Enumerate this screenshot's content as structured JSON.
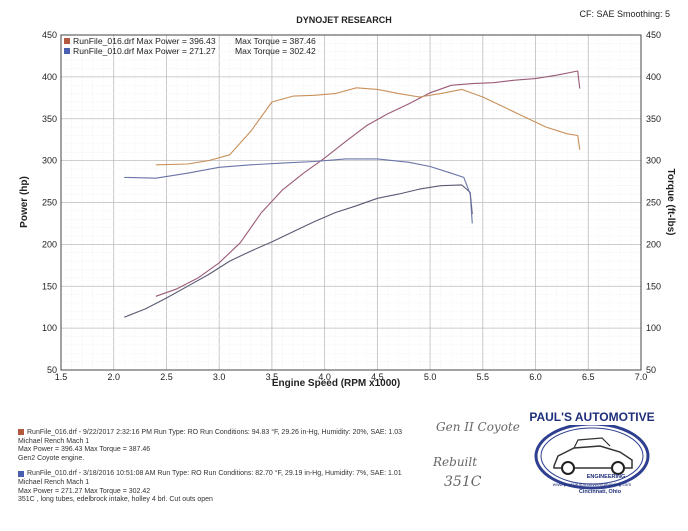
{
  "header": {
    "title": "DYNOJET RESEARCH",
    "settings": "CF: SAE  Smoothing: 5"
  },
  "legend": [
    {
      "file": "RunFile_016.drf",
      "max_power": "Max Power = 396.43",
      "max_torque": "Max Torque = 387.46",
      "color": "#b35a3e"
    },
    {
      "file": "RunFile_010.drf",
      "max_power": "Max Power = 271.27",
      "max_torque": "Max Torque = 302.42",
      "color": "#4a5fb0"
    }
  ],
  "chart_data": {
    "type": "line",
    "xlabel": "Engine Speed (RPM x1000)",
    "ylabel": "Power (hp)",
    "y2label": "Torque (ft-lbs)",
    "xlim": [
      1.5,
      7.0
    ],
    "ylim": [
      50,
      450
    ],
    "y2lim": [
      50,
      450
    ],
    "x_ticks": [
      "1.5",
      "2.0",
      "2.5",
      "3.0",
      "3.5",
      "4.0",
      "4.5",
      "5.0",
      "5.5",
      "6.0",
      "6.5",
      "7.0"
    ],
    "y_ticks": [
      "50",
      "100",
      "150",
      "200",
      "250",
      "300",
      "350",
      "400",
      "450"
    ],
    "y2_ticks": [
      "50",
      "100",
      "150",
      "200",
      "250",
      "300",
      "350",
      "400",
      "450"
    ],
    "grid": true,
    "series": [
      {
        "name": "RunFile_016 Power",
        "axis": "left",
        "color": "#9b5a78",
        "x": [
          2.4,
          2.6,
          2.8,
          3.0,
          3.2,
          3.4,
          3.6,
          3.8,
          4.0,
          4.2,
          4.4,
          4.6,
          4.8,
          5.0,
          5.2,
          5.4,
          5.6,
          5.8,
          6.0,
          6.2,
          6.4,
          6.42
        ],
        "y": [
          138,
          147,
          160,
          178,
          202,
          238,
          265,
          285,
          303,
          323,
          342,
          356,
          368,
          381,
          390,
          392,
          393,
          396,
          398,
          402,
          407,
          386
        ]
      },
      {
        "name": "RunFile_016 Torque",
        "axis": "right",
        "color": "#c9905a",
        "x": [
          2.4,
          2.7,
          2.9,
          3.1,
          3.3,
          3.5,
          3.7,
          3.9,
          4.1,
          4.3,
          4.5,
          4.7,
          4.9,
          5.1,
          5.3,
          5.5,
          5.7,
          5.9,
          6.1,
          6.3,
          6.4,
          6.42
        ],
        "y": [
          295,
          296,
          300,
          307,
          335,
          370,
          377,
          378,
          380,
          387,
          385,
          380,
          376,
          380,
          385,
          376,
          364,
          352,
          340,
          332,
          330,
          313
        ]
      },
      {
        "name": "RunFile_010 Power",
        "axis": "left",
        "color": "#5a5a74",
        "x": [
          2.1,
          2.3,
          2.5,
          2.7,
          2.9,
          3.1,
          3.3,
          3.5,
          3.7,
          3.9,
          4.1,
          4.3,
          4.5,
          4.7,
          4.9,
          5.1,
          5.3,
          5.38,
          5.4
        ],
        "y": [
          113,
          123,
          136,
          150,
          164,
          180,
          192,
          203,
          215,
          227,
          238,
          246,
          255,
          260,
          266,
          270,
          271,
          262,
          236
        ]
      },
      {
        "name": "RunFile_010 Torque",
        "axis": "right",
        "color": "#6a74a8",
        "x": [
          2.1,
          2.4,
          2.7,
          3.0,
          3.3,
          3.6,
          3.9,
          4.2,
          4.5,
          4.8,
          5.0,
          5.2,
          5.32,
          5.38,
          5.4
        ],
        "y": [
          280,
          279,
          285,
          292,
          295,
          297,
          299,
          302,
          302,
          298,
          293,
          285,
          280,
          260,
          225
        ]
      }
    ]
  },
  "footer": {
    "run1_line1": "RunFile_016.drf - 9/22/2017 2:32:16 PM  Run Type: RO  Run Conditions: 94.83 °F, 29.26 in-Hg,  Humidity: 20%, SAE: 1.03",
    "run1_line2": "Michael Rench  Mach 1",
    "run1_line3": "Max Power = 396.43  Max Torque = 387.46",
    "run1_line4": "Gen2 Coyote engine.",
    "run2_line1": "RunFile_010.drf - 3/18/2016 10:51:08 AM  Run Type: RO  Run Conditions: 82.70 °F, 29.19 in-Hg,  Humidity: 7%, SAE: 1.01",
    "run2_line2": "Michael Rench  Mach 1",
    "run2_line3": "Max Power = 271.27  Max Torque = 302.42",
    "run2_line4": "351C , long tubes, edelbrock intake, holley 4 brl. Cut outs open",
    "color1": "#b35a3e",
    "color2": "#4a5fb0"
  },
  "handwriting": {
    "line1": "Gen II Coyote",
    "line2": "Rebuilt",
    "line3": "351C"
  },
  "logo": {
    "name": "PAUL'S AUTOMOTIVE",
    "sub": "ENGINEERING",
    "web": "www.paulsautomotiveengineering.com",
    "city": "Cincinnati, Ohio"
  }
}
